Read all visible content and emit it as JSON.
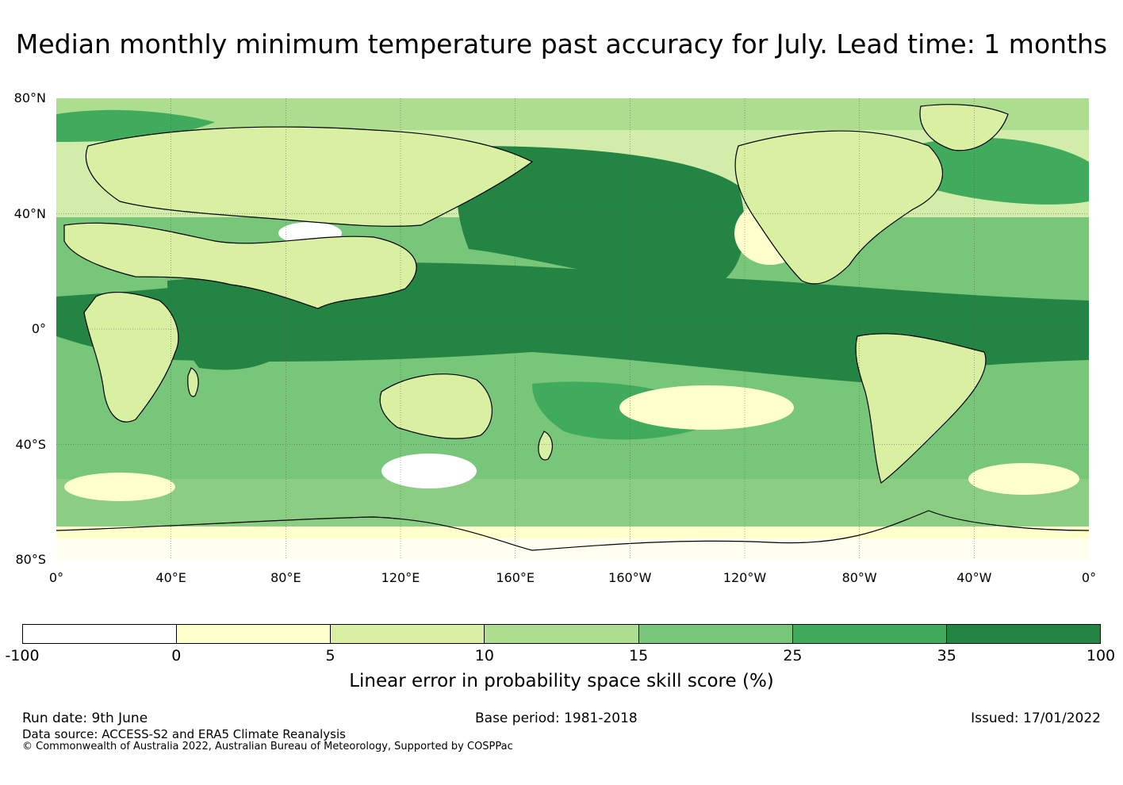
{
  "title": "Median monthly minimum temperature past accuracy for July. Lead time: 1 months",
  "map": {
    "lat_labels": [
      "80°N",
      "40°N",
      "0°",
      "40°S",
      "80°S"
    ],
    "lon_labels": [
      "0°",
      "40°E",
      "80°E",
      "120°E",
      "160°E",
      "160°W",
      "120°W",
      "80°W",
      "40°W",
      "0°"
    ],
    "colors": {
      "ocean_dominant": "#238443",
      "land_low": "#d9f0a3",
      "coastline": "#000000",
      "grid": "#555555"
    }
  },
  "colorbar": {
    "ticks": [
      "-100",
      "0",
      "5",
      "10",
      "15",
      "25",
      "35",
      "100"
    ],
    "colors": [
      "#ffffff",
      "#ffffcc",
      "#d9f0a3",
      "#addd8e",
      "#78c679",
      "#41ab5d",
      "#238443"
    ],
    "label": "Linear error in probability space skill score (%)"
  },
  "footer": {
    "run_date": "Run date: 9th June",
    "base_period": "Base period: 1981-2018",
    "issued": "Issued: 17/01/2022",
    "data_source": "Data source: ACCESS-S2 and ERA5 Climate Reanalysis",
    "copyright": "© Commonwealth of Australia 2022, Australian Bureau of Meteorology, Supported by COSPPac"
  }
}
